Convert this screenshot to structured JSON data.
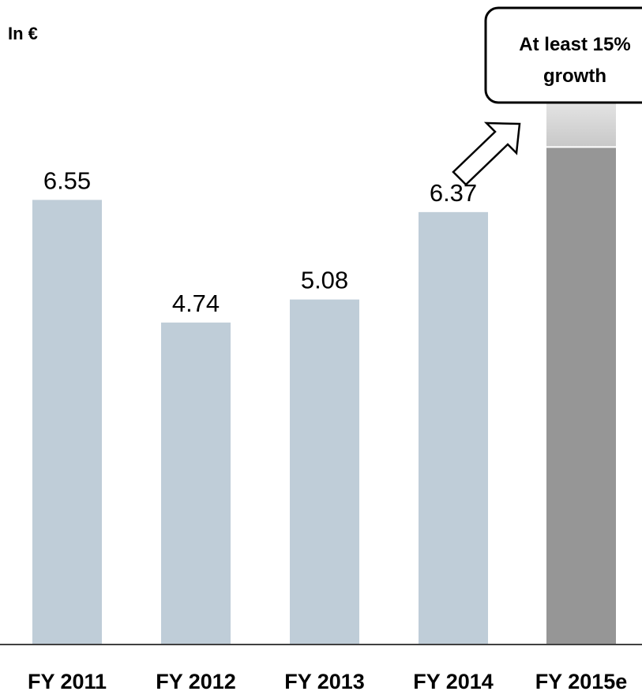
{
  "chart_data": {
    "type": "bar",
    "unit_label": "In €",
    "categories": [
      "FY 2011",
      "FY 2012",
      "FY 2013",
      "FY 2014",
      "FY 2015e"
    ],
    "values": [
      6.55,
      4.74,
      5.08,
      6.37,
      7.33
    ],
    "value_labels": [
      "6.55",
      "4.74",
      "5.08",
      "6.37",
      ""
    ],
    "estimate_extension_value": 1.0,
    "ylim": [
      0,
      9.5
    ],
    "grid": false,
    "callout": {
      "line1": "At least 15%",
      "line2": "growth"
    },
    "colors": {
      "bar": "#bfcdd8",
      "forecast_bar": "#969696",
      "forecast_extension_top": "#f2f2f2",
      "forecast_extension_bottom": "#c8c8c8",
      "axis": "#000000"
    }
  }
}
